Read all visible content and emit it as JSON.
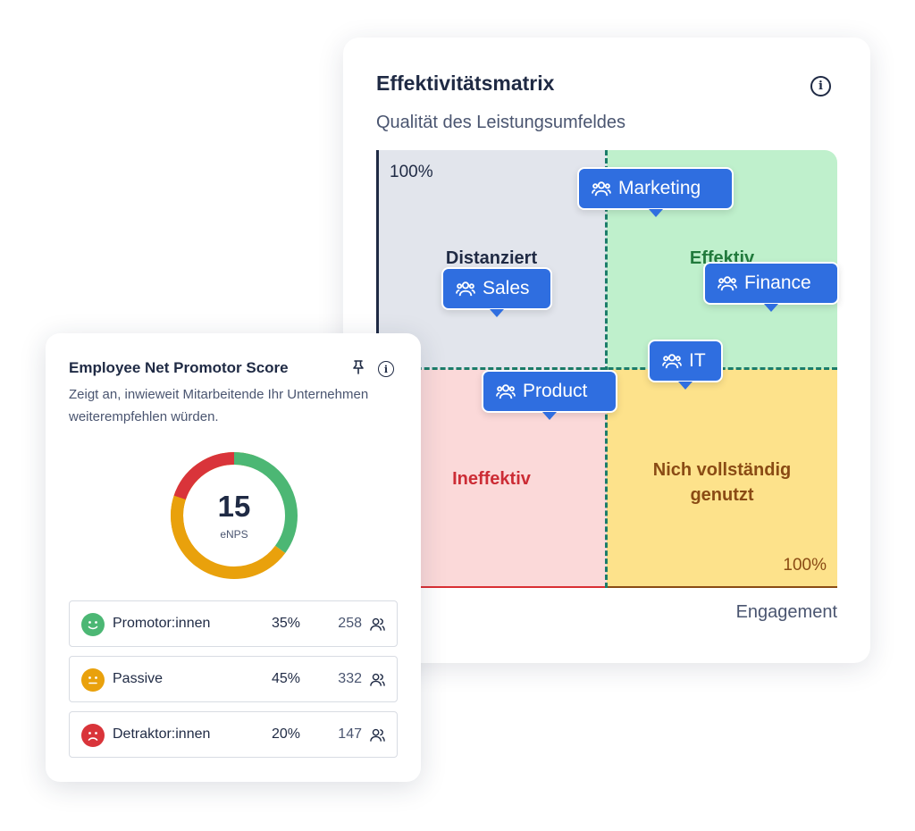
{
  "matrix": {
    "title": "Effektivitätsmatrix",
    "subtitle": "Qualität des Leistungsumfeldes",
    "x_axis_label": "Engagement",
    "top_percent": "100%",
    "bottom_percent": "100%",
    "quadrants": {
      "top_left": "Distanziert",
      "top_right": "Effektiv",
      "bottom_left": "Ineffektiv",
      "bottom_right_line1": "Nich vollständig",
      "bottom_right_line2": "genutzt"
    },
    "colors": {
      "top_left": "#e2e5ec",
      "top_right": "#bff0cc",
      "bottom_left": "#fbd9d9",
      "bottom_right": "#fde28b",
      "tag": "#2f6ee0",
      "divider": "#1c7d6a"
    },
    "teams": [
      "Marketing",
      "Sales",
      "Finance",
      "IT",
      "Product"
    ]
  },
  "enps": {
    "title": "Employee Net Promotor Score",
    "description": "Zeigt an, inwieweit Mitarbeitende Ihr Unternehmen weiterempfehlen würden.",
    "score": "15",
    "score_label": "eNPS",
    "rows": [
      {
        "label": "Promotor:innen",
        "percent": "35%",
        "count": "258",
        "icon": "smile-face-icon",
        "color": "#4cb774"
      },
      {
        "label": "Passive",
        "percent": "45%",
        "count": "332",
        "icon": "neutral-face-icon",
        "color": "#e9a10c"
      },
      {
        "label": "Detraktor:innen",
        "percent": "20%",
        "count": "147",
        "icon": "frown-face-icon",
        "color": "#d9343a"
      }
    ]
  }
}
